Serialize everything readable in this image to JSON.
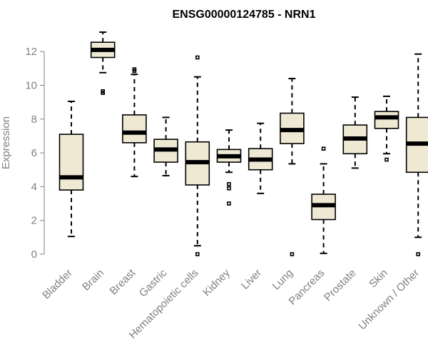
{
  "chart_data": {
    "type": "boxplot",
    "title": "ENSG00000124785 - NRN1",
    "ylabel": "Expression",
    "ylim": [
      0,
      13
    ],
    "yticks": [
      0,
      2,
      4,
      6,
      8,
      10,
      12
    ],
    "categories": [
      "Bladder",
      "Brain",
      "Breast",
      "Gastric",
      "Hematopoietic cells",
      "Kidney",
      "Liver",
      "Lung",
      "Pancreas",
      "Prostate",
      "Skin",
      "Unknown / Other"
    ],
    "boxes": [
      {
        "category": "Bladder",
        "whisker_low": 1.05,
        "q1": 3.8,
        "median": 4.55,
        "q3": 7.1,
        "whisker_high": 9.05,
        "outliers": []
      },
      {
        "category": "Brain",
        "whisker_low": 10.75,
        "q1": 11.65,
        "median": 12.1,
        "q3": 12.55,
        "whisker_high": 13.15,
        "outliers": [
          9.55,
          9.65
        ]
      },
      {
        "category": "Breast",
        "whisker_low": 4.6,
        "q1": 6.6,
        "median": 7.2,
        "q3": 8.25,
        "whisker_high": 10.65,
        "outliers": [
          10.85,
          10.95
        ]
      },
      {
        "category": "Gastric",
        "whisker_low": 4.65,
        "q1": 5.45,
        "median": 6.2,
        "q3": 6.8,
        "whisker_high": 8.1,
        "outliers": []
      },
      {
        "category": "Hematopoietic cells",
        "whisker_low": 0.5,
        "q1": 4.1,
        "median": 5.45,
        "q3": 6.65,
        "whisker_high": 10.5,
        "outliers": [
          0.0,
          11.65
        ]
      },
      {
        "category": "Kidney",
        "whisker_low": 4.85,
        "q1": 5.45,
        "median": 5.8,
        "q3": 6.2,
        "whisker_high": 7.35,
        "outliers": [
          3.0,
          3.9,
          4.15
        ]
      },
      {
        "category": "Liver",
        "whisker_low": 3.6,
        "q1": 5.0,
        "median": 5.6,
        "q3": 6.25,
        "whisker_high": 7.75,
        "outliers": []
      },
      {
        "category": "Lung",
        "whisker_low": 5.35,
        "q1": 6.55,
        "median": 7.35,
        "q3": 8.35,
        "whisker_high": 10.4,
        "outliers": [
          0.0
        ]
      },
      {
        "category": "Pancreas",
        "whisker_low": 0.05,
        "q1": 2.05,
        "median": 2.9,
        "q3": 3.55,
        "whisker_high": 5.35,
        "outliers": [
          6.25
        ]
      },
      {
        "category": "Prostate",
        "whisker_low": 5.1,
        "q1": 5.95,
        "median": 6.85,
        "q3": 7.65,
        "whisker_high": 9.3,
        "outliers": []
      },
      {
        "category": "Skin",
        "whisker_low": 5.95,
        "q1": 7.45,
        "median": 8.1,
        "q3": 8.45,
        "whisker_high": 9.35,
        "outliers": [
          5.6
        ]
      },
      {
        "category": "Unknown / Other",
        "whisker_low": 1.0,
        "q1": 4.85,
        "median": 6.55,
        "q3": 8.1,
        "whisker_high": 11.85,
        "outliers": [
          0.0
        ]
      }
    ],
    "colors": {
      "box_fill": "#efe9d4",
      "line": "#000000",
      "axis": "#808080"
    },
    "grid": false,
    "legend": "none"
  }
}
